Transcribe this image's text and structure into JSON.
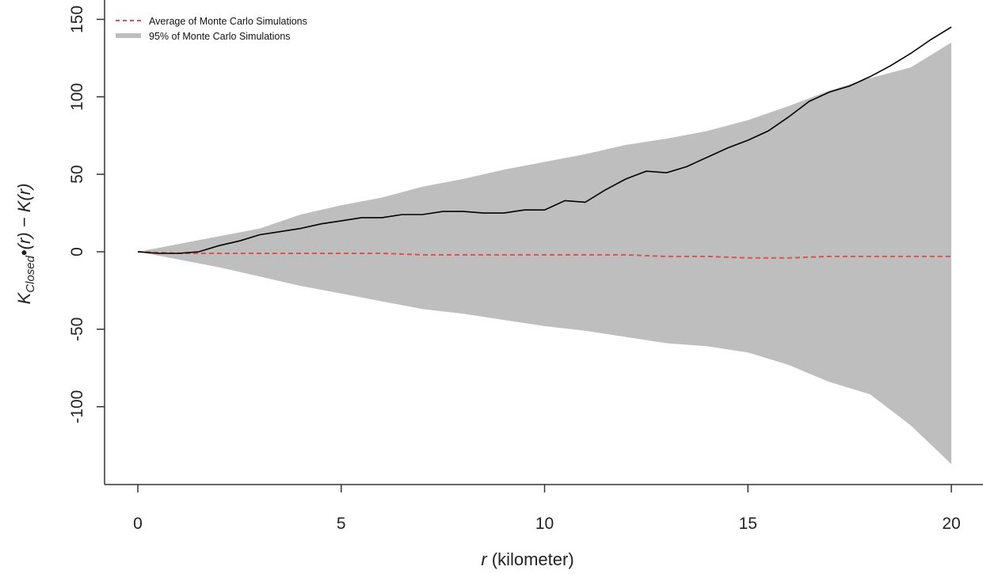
{
  "chart_data": {
    "type": "area",
    "xlabel_var": "r",
    "xlabel_unit": " (kilometer)",
    "ylabel": {
      "k1": "K",
      "sub": "Closed",
      "bullet": "•",
      "mid": "(r) − ",
      "k2": "K",
      "end": "(r)"
    },
    "xlim": [
      0,
      20
    ],
    "ylim": [
      -150,
      150
    ],
    "x_ticks": [
      "0",
      "5",
      "10",
      "15",
      "20"
    ],
    "y_ticks": [
      "-100",
      "-50",
      "0",
      "50",
      "100",
      "150"
    ],
    "grid": false,
    "legend_position": "top-left",
    "legend": [
      {
        "label": "Average of Monte Carlo Simulations",
        "style": "dashed",
        "color": "#d9534f"
      },
      {
        "label": "95% of Monte Carlo Simulations",
        "style": "band",
        "color": "#bebebe"
      }
    ],
    "colors": {
      "band": "#bebebe",
      "observed": "#000000",
      "average": "#d9534f",
      "axis": "#333333"
    },
    "series": [
      {
        "role": "observed",
        "x": [
          0,
          0.5,
          1.0,
          1.5,
          2.0,
          2.5,
          3.0,
          3.5,
          4.0,
          4.5,
          5.0,
          5.5,
          6.0,
          6.5,
          7.0,
          7.5,
          8.0,
          8.5,
          9.0,
          9.5,
          10.0,
          10.5,
          11.0,
          11.5,
          12.0,
          12.5,
          13.0,
          13.5,
          14.0,
          14.5,
          15.0,
          15.5,
          16.0,
          16.5,
          17.0,
          17.5,
          18.0,
          18.5,
          19.0,
          19.5,
          20.0
        ],
        "values": [
          0,
          -1,
          -1,
          0,
          4,
          7,
          11,
          13,
          15,
          18,
          20,
          22,
          22,
          24,
          24,
          26,
          26,
          25,
          25,
          27,
          27,
          33,
          32,
          40,
          47,
          52,
          51,
          55,
          61,
          67,
          72,
          78,
          87,
          97,
          103,
          107,
          113,
          120,
          128,
          137,
          145
        ]
      },
      {
        "role": "average",
        "name": "Average of Monte Carlo Simulations",
        "x": [
          0,
          1,
          2,
          3,
          4,
          5,
          6,
          7,
          8,
          9,
          10,
          11,
          12,
          13,
          14,
          15,
          16,
          17,
          18,
          19,
          20
        ],
        "values": [
          0,
          -1,
          -1,
          -1,
          -1,
          -1,
          -1,
          -2,
          -2,
          -2,
          -2,
          -2,
          -2,
          -3,
          -3,
          -4,
          -4,
          -3,
          -3,
          -3,
          -3
        ]
      },
      {
        "role": "band",
        "name": "95% of Monte Carlo Simulations",
        "x": [
          0,
          1,
          2,
          3,
          4,
          5,
          6,
          7,
          8,
          9,
          10,
          11,
          12,
          13,
          14,
          15,
          16,
          17,
          18,
          19,
          20
        ],
        "upper": [
          0,
          5,
          10,
          15,
          24,
          30,
          35,
          42,
          47,
          53,
          58,
          63,
          69,
          73,
          78,
          85,
          94,
          104,
          112,
          119,
          135
        ],
        "lower": [
          0,
          -5,
          -10,
          -16,
          -22,
          -27,
          -32,
          -37,
          -40,
          -44,
          -48,
          -51,
          -55,
          -59,
          -61,
          -65,
          -73,
          -84,
          -92,
          -112,
          -137
        ]
      }
    ]
  }
}
